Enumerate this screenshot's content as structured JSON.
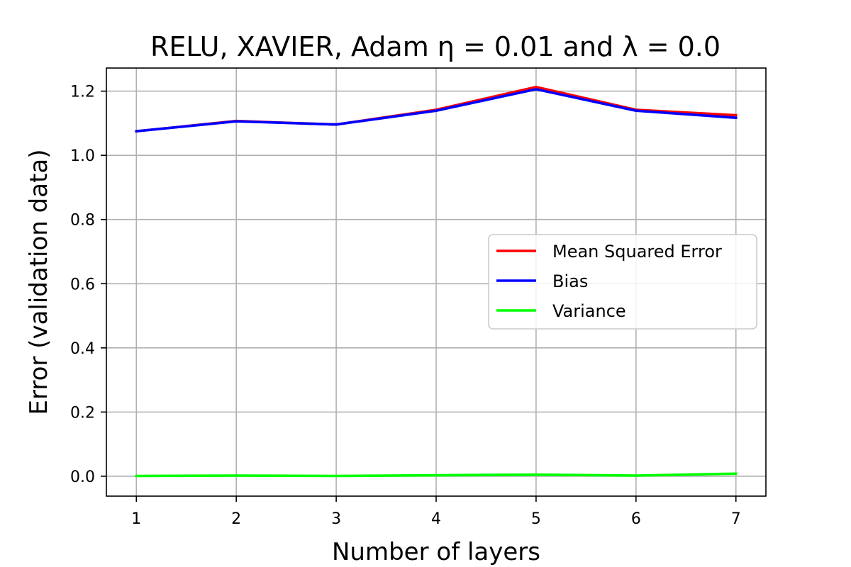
{
  "chart_data": {
    "type": "line",
    "title": "RELU, XAVIER, Adam η = 0.01 and λ = 0.0",
    "xlabel": "Number of layers",
    "ylabel": "Error (validation data)",
    "x": [
      1,
      2,
      3,
      4,
      5,
      6,
      7
    ],
    "xlim": [
      0.7,
      7.3
    ],
    "ylim": [
      -0.062,
      1.272
    ],
    "xticks": [
      1,
      2,
      3,
      4,
      5,
      6,
      7
    ],
    "yticks": [
      0.0,
      0.2,
      0.4,
      0.6,
      0.8,
      1.0,
      1.2
    ],
    "ytick_labels": [
      "0.0",
      "0.2",
      "0.4",
      "0.6",
      "0.8",
      "1.0",
      "1.2"
    ],
    "grid": true,
    "legend_position": "center-right",
    "series": [
      {
        "name": "Mean Squared Error",
        "color": "#ff0000",
        "values": [
          1.075,
          1.107,
          1.096,
          1.142,
          1.213,
          1.142,
          1.125
        ]
      },
      {
        "name": "Bias",
        "color": "#0000ff",
        "values": [
          1.075,
          1.106,
          1.096,
          1.139,
          1.206,
          1.139,
          1.117
        ]
      },
      {
        "name": "Variance",
        "color": "#00ff00",
        "values": [
          0.001,
          0.002,
          0.001,
          0.003,
          0.005,
          0.002,
          0.008
        ]
      }
    ]
  }
}
